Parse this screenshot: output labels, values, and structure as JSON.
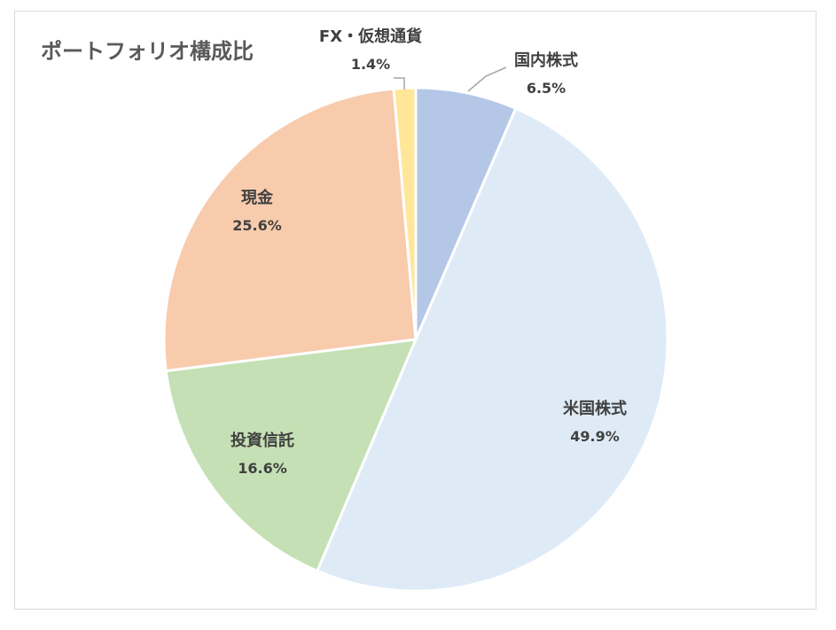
{
  "chart_data": {
    "type": "pie",
    "title": "ポートフォリオ構成比",
    "legend": "none",
    "slices": [
      {
        "label": "国内株式",
        "value": 6.5,
        "display": "6.5%",
        "color": "#b4c7e7"
      },
      {
        "label": "米国株式",
        "value": 49.9,
        "display": "49.9%",
        "color": "#deebf7"
      },
      {
        "label": "投資信託",
        "value": 16.6,
        "display": "16.6%",
        "color": "#c5e0b4"
      },
      {
        "label": "現金",
        "value": 25.6,
        "display": "25.6%",
        "color": "#f8cbad"
      },
      {
        "label": "FX・仮想通貨",
        "value": 1.4,
        "display": "1.4%",
        "color": "#ffe699"
      }
    ]
  }
}
